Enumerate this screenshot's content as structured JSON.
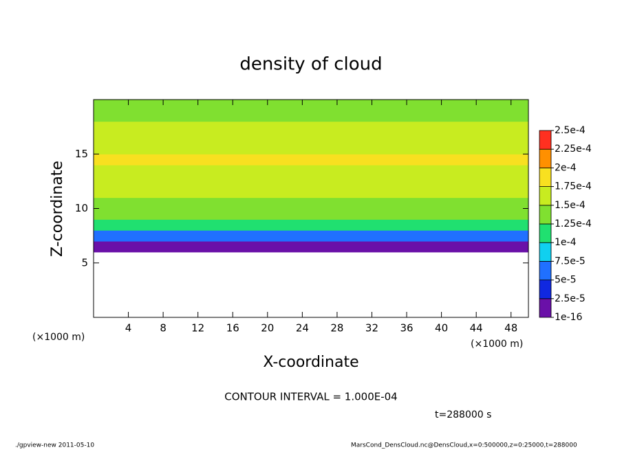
{
  "chart_data": {
    "type": "heatmap",
    "title": "density of cloud",
    "x_label": "X-coordinate",
    "y_label": "Z-coordinate",
    "x_unit": "(×1000 m)",
    "annotation": "CONTOUR INTERVAL = 1.000E-04",
    "time_label": "t=288000 s",
    "footer_left": "./gpview-new  2011-05-10",
    "footer_right": "MarsCond_DensCloud.nc@DensCloud,x=0:500000,z=0:25000,t=288000",
    "xlim": [
      0,
      50
    ],
    "xticks": [
      4,
      8,
      12,
      16,
      20,
      24,
      28,
      32,
      36,
      40,
      44,
      48
    ],
    "ylim": [
      0,
      20
    ],
    "yticks": [
      5,
      10,
      15
    ],
    "z": [
      6.5,
      7.5,
      8.5,
      9.5,
      10.5,
      11.5,
      12.5,
      13.5,
      14.5,
      15.5,
      16.5,
      17.5,
      18.5,
      19.5
    ],
    "values": [
      1e-16,
      5e-05,
      0.0001,
      0.00013,
      0.00014,
      0.000155,
      0.000165,
      0.00017,
      0.000175,
      0.00017,
      0.00016,
      0.00015,
      0.00014,
      0.00013
    ],
    "levels": [
      {
        "value": 1e-16,
        "label": "1e-16"
      },
      {
        "value": 2.5e-05,
        "label": "2.5e-5"
      },
      {
        "value": 5e-05,
        "label": "5e-5"
      },
      {
        "value": 7.5e-05,
        "label": "7.5e-5"
      },
      {
        "value": 0.0001,
        "label": "1e-4"
      },
      {
        "value": 0.000125,
        "label": "1.25e-4"
      },
      {
        "value": 0.00015,
        "label": "1.5e-4"
      },
      {
        "value": 0.000175,
        "label": "1.75e-4"
      },
      {
        "value": 0.0002,
        "label": "2e-4"
      },
      {
        "value": 0.000225,
        "label": "2.25e-4"
      },
      {
        "value": 0.00025,
        "label": "2.5e-4"
      }
    ],
    "colors": [
      "#6a10a8",
      "#1028e0",
      "#2070ff",
      "#10d0f0",
      "#20e070",
      "#80e030",
      "#c8ec20",
      "#f8e020",
      "#ff9000",
      "#ff3020"
    ]
  }
}
